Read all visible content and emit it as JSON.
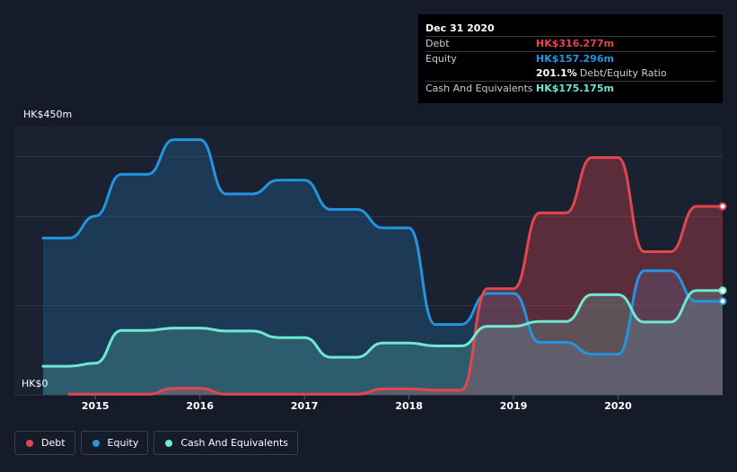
{
  "tooltip": {
    "date": "Dec 31 2020",
    "debt_label": "Debt",
    "debt_value": "HK$316.277m",
    "equity_label": "Equity",
    "equity_value": "HK$157.296m",
    "ratio_value": "201.1%",
    "ratio_label": "Debt/Equity Ratio",
    "cash_label": "Cash And Equivalents",
    "cash_value": "HK$175.175m"
  },
  "colors": {
    "background": "#151b28",
    "debt": "#e5454e",
    "equity": "#2394df",
    "cash": "#6ee7d3",
    "grid": "#2c3340"
  },
  "chart_data": {
    "type": "area",
    "title": "",
    "y_max_label": "HK$450m",
    "y_min_label": "HK$0",
    "ylim": [
      0,
      450
    ],
    "xlim": [
      2014.5,
      2021.0
    ],
    "x_ticks": [
      {
        "value": 2015,
        "label": "2015"
      },
      {
        "value": 2016,
        "label": "2016"
      },
      {
        "value": 2017,
        "label": "2017"
      },
      {
        "value": 2018,
        "label": "2018"
      },
      {
        "value": 2019,
        "label": "2019"
      },
      {
        "value": 2020,
        "label": "2020"
      }
    ],
    "series": [
      {
        "name": "Debt",
        "key": "debt",
        "x": [
          2014.75,
          2015.0,
          2015.5,
          2015.75,
          2016.0,
          2016.25,
          2016.5,
          2016.75,
          2017.0,
          2017.25,
          2017.5,
          2017.75,
          2018.0,
          2018.25,
          2018.5,
          2018.75,
          2019.0,
          2019.25,
          2019.5,
          2019.75,
          2020.0,
          2020.25,
          2020.5,
          2020.75,
          2021.0
        ],
        "values": [
          1,
          1,
          1,
          11,
          11,
          1,
          1,
          1,
          1,
          1,
          1,
          10,
          10,
          8,
          8,
          178,
          178,
          305,
          305,
          398,
          398,
          240,
          240,
          316,
          316
        ]
      },
      {
        "name": "Equity",
        "key": "equity",
        "x": [
          2014.5,
          2014.75,
          2015.0,
          2015.25,
          2015.5,
          2015.75,
          2016.0,
          2016.25,
          2016.5,
          2016.75,
          2017.0,
          2017.25,
          2017.5,
          2017.75,
          2018.0,
          2018.25,
          2018.5,
          2018.75,
          2019.0,
          2019.25,
          2019.5,
          2019.75,
          2020.0,
          2020.25,
          2020.5,
          2020.75,
          2021.0
        ],
        "values": [
          263,
          263,
          300,
          370,
          370,
          428,
          428,
          337,
          337,
          360,
          360,
          311,
          311,
          280,
          280,
          118,
          118,
          170,
          170,
          88,
          88,
          68,
          68,
          208,
          208,
          157,
          157
        ]
      },
      {
        "name": "Cash And Equivalents",
        "key": "cash",
        "x": [
          2014.5,
          2014.75,
          2015.0,
          2015.25,
          2015.5,
          2015.75,
          2016.0,
          2016.25,
          2016.5,
          2016.75,
          2017.0,
          2017.25,
          2017.5,
          2017.75,
          2018.0,
          2018.25,
          2018.5,
          2018.75,
          2019.0,
          2019.25,
          2019.5,
          2019.75,
          2020.0,
          2020.25,
          2020.5,
          2020.75,
          2021.0
        ],
        "values": [
          48,
          48,
          53,
          108,
          108,
          112,
          112,
          107,
          107,
          96,
          96,
          63,
          63,
          87,
          87,
          82,
          82,
          115,
          115,
          123,
          123,
          168,
          168,
          122,
          122,
          175,
          175
        ]
      }
    ],
    "legend": [
      "Debt",
      "Equity",
      "Cash And Equivalents"
    ],
    "legend_position": "bottom-left"
  }
}
